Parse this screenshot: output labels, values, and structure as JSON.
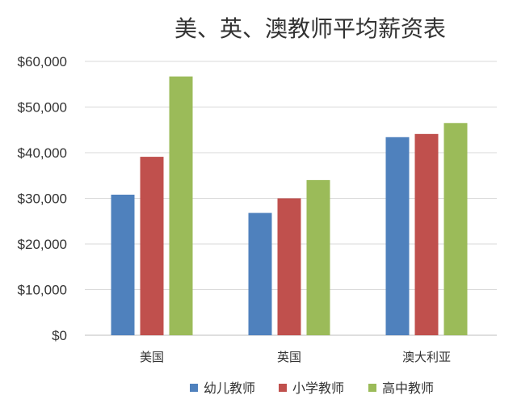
{
  "chart_data": {
    "type": "bar",
    "title": "美、英、澳教师平均薪资表",
    "categories": [
      "美国",
      "英国",
      "澳大利亚"
    ],
    "series": [
      {
        "name": "幼儿教师",
        "color": "#4f81bd",
        "values": [
          30800,
          26800,
          43400
        ]
      },
      {
        "name": "小学教师",
        "color": "#c0504d",
        "values": [
          39100,
          30000,
          44100
        ]
      },
      {
        "name": "高中教师",
        "color": "#9bbb59",
        "values": [
          56700,
          34000,
          46500
        ]
      }
    ],
    "ylim": [
      0,
      60000
    ],
    "yticks": [
      0,
      10000,
      20000,
      30000,
      40000,
      50000,
      60000
    ],
    "ytick_labels": [
      "$0",
      "$10,000",
      "$20,000",
      "$30,000",
      "$40,000",
      "$50,000",
      "$60,000"
    ],
    "xlabel": "",
    "ylabel": "",
    "grid": true,
    "legend_position": "bottom"
  }
}
